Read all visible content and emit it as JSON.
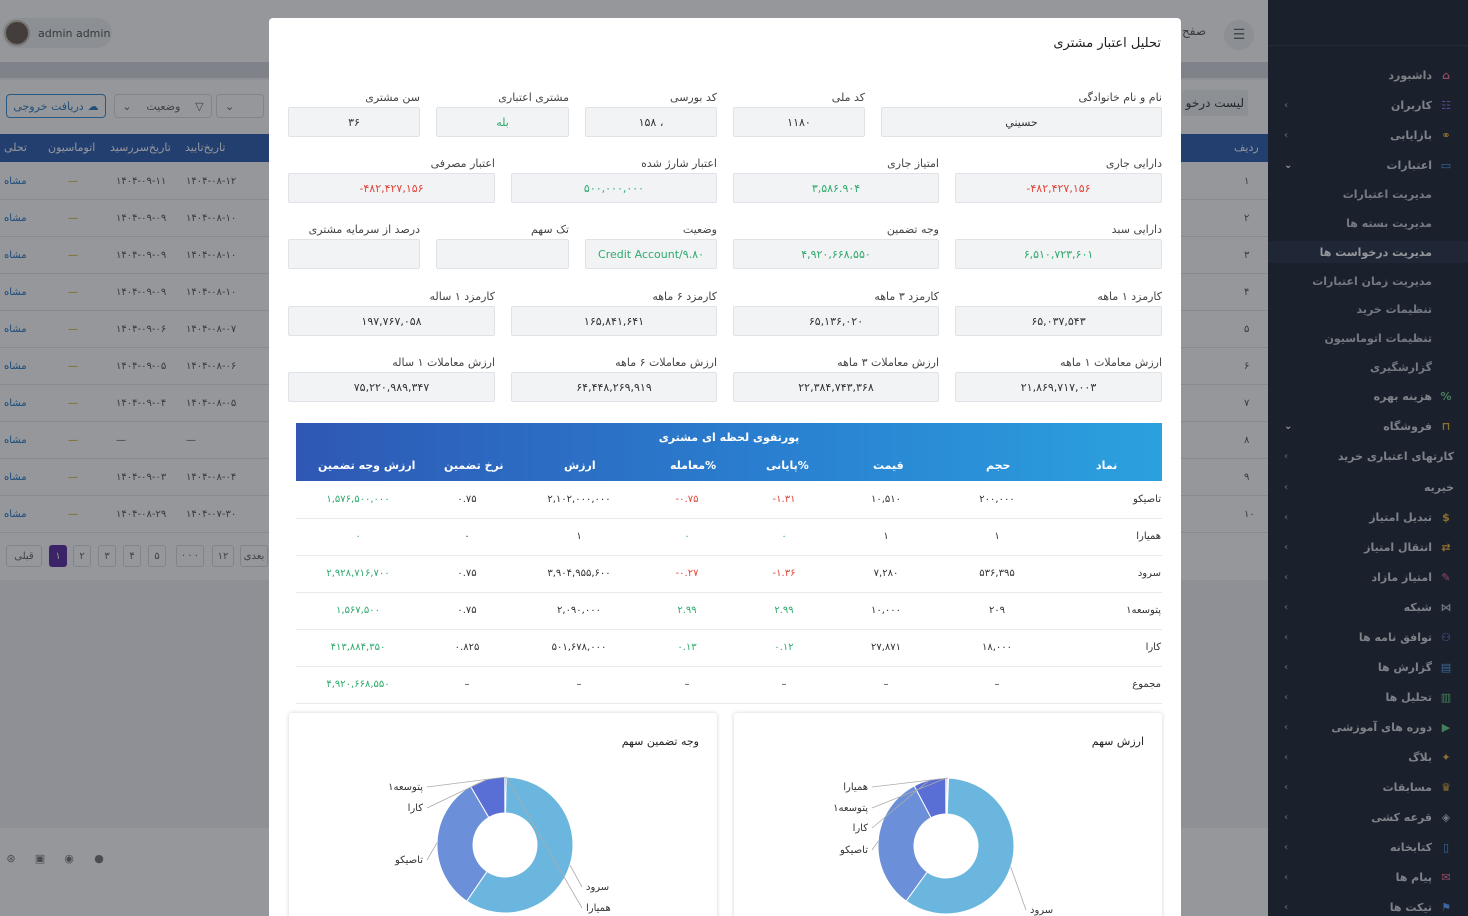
{
  "app": {
    "user_name": "admin admin",
    "breadcrumb_fragment": "صفح",
    "list_title": "لیست درخو",
    "export_label": "دریافت خروجی",
    "status_filter_label": "وضعیت",
    "table_headers": [
      "ردیف",
      "تاریخ‌تایید",
      "تاریخ‌سررسید",
      "اتوماسیون",
      "تحلی"
    ],
    "table_rows": [
      {
        "num": "۱",
        "confirm": "۱۴۰۴-۰۸-۱۲",
        "due": "۱۴۰۴-۰۹-۱۱",
        "auto": "—",
        "action": "مشاه"
      },
      {
        "num": "۲",
        "confirm": "۱۴۰۴-۰۸-۱۰",
        "due": "۱۴۰۴-۰۹-۰۹",
        "auto": "—",
        "action": "مشاه"
      },
      {
        "num": "۳",
        "confirm": "۱۴۰۴-۰۸-۱۰",
        "due": "۱۴۰۴-۰۹-۰۹",
        "auto": "—",
        "action": "مشاه"
      },
      {
        "num": "۴",
        "confirm": "۱۴۰۴-۰۸-۱۰",
        "due": "۱۴۰۴-۰۹-۰۹",
        "auto": "—",
        "action": "مشاه"
      },
      {
        "num": "۵",
        "confirm": "۱۴۰۴-۰۸-۰۷",
        "due": "۱۴۰۴-۰۹-۰۶",
        "auto": "—",
        "action": "مشاه"
      },
      {
        "num": "۶",
        "confirm": "۱۴۰۴-۰۸-۰۶",
        "due": "۱۴۰۴-۰۹-۰۵",
        "auto": "—",
        "action": "مشاه"
      },
      {
        "num": "۷",
        "confirm": "۱۴۰۴-۰۸-۰۵",
        "due": "۱۴۰۴-۰۹-۰۴",
        "auto": "—",
        "action": "مشاه"
      },
      {
        "num": "۸",
        "confirm": "—",
        "due": "—",
        "auto": "—",
        "action": "مشاه"
      },
      {
        "num": "۹",
        "confirm": "۱۴۰۴-۰۸-۰۴",
        "due": "۱۴۰۴-۰۹-۰۳",
        "auto": "—",
        "action": "مشاه"
      },
      {
        "num": "۱۰",
        "confirm": "۱۴۰۴-۰۷-۳۰",
        "due": "۱۴۰۴-۰۸-۲۹",
        "auto": "—",
        "action": "مشاه"
      }
    ],
    "pagination": [
      "قبلی",
      "۱",
      "۲",
      "۳",
      "۴",
      "۵",
      "· · ·",
      "۱۲",
      "بعدی"
    ]
  },
  "sidebar": {
    "items": [
      {
        "label": "داشبورد",
        "icon": "home-icon"
      },
      {
        "label": "کاربران",
        "icon": "users-icon"
      },
      {
        "label": "بازایابی",
        "icon": "handshake-icon"
      },
      {
        "label": "اعتبارات",
        "icon": "credit-card-icon"
      },
      {
        "label": "فروشگاه",
        "icon": "shopping-bag-icon"
      },
      {
        "label": "کارتهای اعتباری خرید",
        "icon": ""
      },
      {
        "label": "خیریه",
        "icon": ""
      },
      {
        "label": "تبدیل امتیاز",
        "icon": "exchange-icon"
      },
      {
        "label": "انتقال امتیاز",
        "icon": "transfer-icon"
      },
      {
        "label": "امتیاز مازاد",
        "icon": "edit-icon"
      },
      {
        "label": "شبکه",
        "icon": "network-icon"
      },
      {
        "label": "توافق نامه ها",
        "icon": "agreement-icon"
      },
      {
        "label": "گزارش ها",
        "icon": "report-icon"
      },
      {
        "label": "تحلیل ها",
        "icon": "analytics-icon"
      },
      {
        "label": "دوره های آموزشی",
        "icon": "play-icon"
      },
      {
        "label": "بلاگ",
        "icon": "blog-icon"
      },
      {
        "label": "مسابقات",
        "icon": "trophy-icon"
      },
      {
        "label": "قرعه کشی",
        "icon": "lottery-icon"
      },
      {
        "label": "کتابخانه",
        "icon": "book-icon"
      },
      {
        "label": "پیام ها",
        "icon": "message-icon"
      },
      {
        "label": "تیکت ها",
        "icon": "ticket-icon"
      },
      {
        "label": "هزینه بهره",
        "icon": "interest-icon"
      }
    ],
    "credit_sub": [
      "مدیریت اعتبارات",
      "مدیریت بسته ها",
      "مدیریت درخواست ها",
      "مدیریت زمان اعتبارات",
      "تنظیمات خرید",
      "تنظیمات اتوماسیون",
      "گزارشگیری"
    ]
  },
  "modal": {
    "title": "تحلیل اعتبار مشتری",
    "fields": {
      "name": {
        "label": "نام و نام خانوادگی",
        "value": "حسيني"
      },
      "national_code": {
        "label": "کد ملی",
        "value": "۱۱۸۰"
      },
      "bourse_code": {
        "label": "کد بورسی",
        "value": "۱۵۸ ،"
      },
      "credit_customer": {
        "label": "مشتری اعتباری",
        "value": "بله"
      },
      "age": {
        "label": "سن مشتری",
        "value": "۳۶"
      },
      "current_assets": {
        "label": "دارایی جاری",
        "value": "-۴۸۲,۴۲۷,۱۵۶"
      },
      "current_score": {
        "label": "امتیاز جاری",
        "value": "۳,۵۸۶.۹۰۴"
      },
      "charged_credit": {
        "label": "اعتبار شارژ شده",
        "value": "۵۰۰,۰۰۰,۰۰۰"
      },
      "used_credit": {
        "label": "اعتبار مصرفی",
        "value": "-۴۸۲,۴۲۷,۱۵۶"
      },
      "basket_assets": {
        "label": "دارایی سبد",
        "value": "۶,۵۱۰,۷۲۳,۶۰۱"
      },
      "collateral": {
        "label": "وجه تضمین",
        "value": "۴,۹۲۰,۶۶۸,۵۵۰"
      },
      "status": {
        "label": "وضعیت",
        "value": "Credit Account/۹.۸۰"
      },
      "single_stock": {
        "label": "تک سهم",
        "value": ""
      },
      "capital_percent": {
        "label": "درصد از سرمایه مشتری",
        "value": ""
      },
      "fee_1m": {
        "label": "کارمزد ۱ ماهه",
        "value": "۶۵,۰۳۷,۵۴۳"
      },
      "fee_3m": {
        "label": "کارمزد ۳ ماهه",
        "value": "۶۵,۱۳۶,۰۲۰"
      },
      "fee_6m": {
        "label": "کارمزد ۶ ماهه",
        "value": "۱۶۵,۸۴۱,۶۴۱"
      },
      "fee_1y": {
        "label": "کارمزد ۱ ساله",
        "value": "۱۹۷,۷۶۷,۰۵۸"
      },
      "trade_1m": {
        "label": "ارزش معاملات ۱ ماهه",
        "value": "۲۱,۸۶۹,۷۱۷,۰۰۳"
      },
      "trade_3m": {
        "label": "ارزش معاملات ۳ ماهه",
        "value": "۲۲,۳۸۴,۷۴۳,۳۶۸"
      },
      "trade_6m": {
        "label": "ارزش معاملات ۶ ماهه",
        "value": "۶۴,۴۴۸,۲۶۹,۹۱۹"
      },
      "trade_1y": {
        "label": "ارزش معاملات ۱ ساله",
        "value": "۷۵,۲۲۰,۹۸۹,۳۴۷"
      }
    },
    "portfolio": {
      "title": "پورتفوی لحظه ای مشتری",
      "columns": [
        "نماد",
        "حجم",
        "قیمت",
        "پایانی%",
        "معامله%",
        "ارزش",
        "نرخ تضمین",
        "ارزش وجه تضمین"
      ],
      "rows": [
        {
          "symbol": "تاصیکو",
          "volume": "۲۰۰,۰۰۰",
          "price": "۱۰,۵۱۰",
          "close_pct": "-۱.۳۱",
          "trade_pct": "-۰.۷۵",
          "value": "۲,۱۰۲,۰۰۰,۰۰۰",
          "rate": "۰.۷۵",
          "coll_value": "۱,۵۷۶,۵۰۰,۰۰۰"
        },
        {
          "symbol": "همیارا",
          "volume": "۱",
          "price": "۱",
          "close_pct": "۰",
          "trade_pct": "۰",
          "value": "۱",
          "rate": "۰",
          "coll_value": "۰"
        },
        {
          "symbol": "سرود",
          "volume": "۵۳۶,۳۹۵",
          "price": "۷,۲۸۰",
          "close_pct": "-۱.۳۶",
          "trade_pct": "-۰.۲۷",
          "value": "۳,۹۰۴,۹۵۵,۶۰۰",
          "rate": "۰.۷۵",
          "coll_value": "۲,۹۲۸,۷۱۶,۷۰۰"
        },
        {
          "symbol": "پتوسعه۱",
          "volume": "۲۰۹",
          "price": "۱۰,۰۰۰",
          "close_pct": "۲.۹۹",
          "trade_pct": "۲.۹۹",
          "value": "۲,۰۹۰,۰۰۰",
          "rate": "۰.۷۵",
          "coll_value": "۱,۵۶۷,۵۰۰"
        },
        {
          "symbol": "کارا",
          "volume": "۱۸,۰۰۰",
          "price": "۲۷,۸۷۱",
          "close_pct": "۰.۱۲",
          "trade_pct": "۰.۱۳",
          "value": "۵۰۱,۶۷۸,۰۰۰",
          "rate": "۰.۸۲۵",
          "coll_value": "۴۱۳,۸۸۴,۳۵۰"
        },
        {
          "symbol": "مجموع",
          "volume": "–",
          "price": "–",
          "close_pct": "–",
          "trade_pct": "–",
          "value": "–",
          "rate": "–",
          "coll_value": "۴,۹۲۰,۶۶۸,۵۵۰"
        }
      ]
    },
    "charts": {
      "stock_value": {
        "title": "ارزش سهم",
        "chart_data": {
          "type": "pie",
          "categories": [
            "سرود",
            "تاصیکو",
            "کارا",
            "پتوسعه۱",
            "همیارا"
          ],
          "values": [
            3904955600,
            2102000000,
            501678000,
            2090000,
            1
          ],
          "colors": [
            "#6bb6de",
            "#6b8fd8",
            "#5a6fd6",
            "#4e5bc9",
            "#cccccc"
          ]
        }
      },
      "collateral": {
        "title": "وجه تضمین سهم",
        "chart_data": {
          "type": "pie",
          "categories": [
            "سرود",
            "تاصیکو",
            "کارا",
            "پتوسعه۱",
            "همیارا"
          ],
          "values": [
            2928716700,
            1576500000,
            413884350,
            1567500,
            0
          ],
          "colors": [
            "#6bb6de",
            "#6b8fd8",
            "#5a6fd6",
            "#4e5bc9",
            "#cccccc"
          ]
        }
      }
    }
  },
  "footer": {
    "icons": [
      "facebook-icon",
      "github-icon",
      "instagram-icon",
      "dribbble-icon"
    ]
  }
}
